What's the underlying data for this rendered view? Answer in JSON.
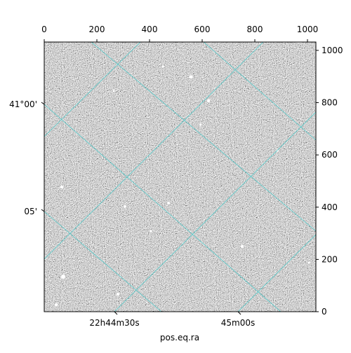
{
  "chart_data": {
    "type": "image",
    "xlabel": "pos.eq.ra",
    "xlim": [
      0,
      1032
    ],
    "ylim": [
      0,
      1032
    ],
    "xticks": [
      0,
      200,
      400,
      600,
      800,
      1000
    ],
    "yticks": [
      0,
      200,
      400,
      600,
      800,
      1000
    ],
    "ra_tick_labels": [
      "22h44m30s",
      "45m00s"
    ],
    "dec_tick_labels": [
      "41°00'",
      "05'"
    ],
    "grid": true,
    "grid_color": "#3fc8c8"
  }
}
